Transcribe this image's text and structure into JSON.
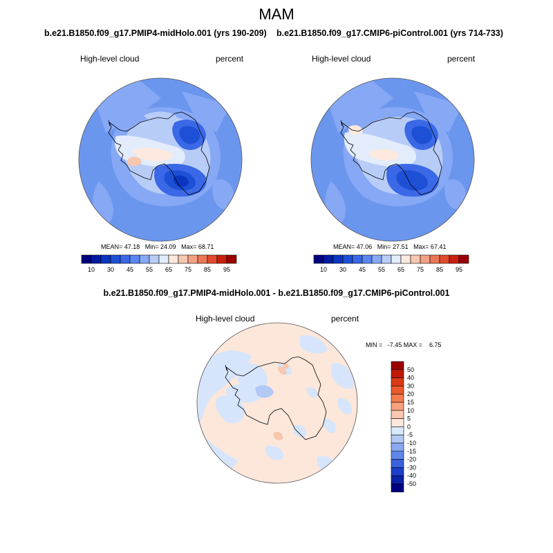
{
  "page": {
    "title": "MAM"
  },
  "panel_left": {
    "case": "b.e21.B1850.f09_g17.PMIP4-midHolo.001 (yrs 190-209)",
    "variable": "High-level cloud",
    "units": "percent",
    "stats": {
      "mean": "MEAN=  47.18",
      "min": "Min=  24.09",
      "max": "Max=  68.71"
    }
  },
  "panel_right": {
    "case": "b.e21.B1850.f09_g17.CMIP6-piControl.001 (yrs 714-733)",
    "variable": "High-level cloud",
    "units": "percent",
    "stats": {
      "mean": "MEAN=  47.06",
      "min": "Min=  27.51",
      "max": "Max=  67.41"
    }
  },
  "panel_diff": {
    "case": "b.e21.B1850.f09_g17.PMIP4-midHolo.001 - b.e21.B1850.f09_g17.CMIP6-piControl.001",
    "variable": "High-level cloud",
    "units": "percent",
    "minmax": "MIN =   -7.45 MAX =    6.75"
  },
  "colorbar_abs": {
    "colors": [
      "#00007f",
      "#001aa0",
      "#0a35c0",
      "#1e50d6",
      "#3a68e6",
      "#5a86ef",
      "#86a8f5",
      "#b8ccf8",
      "#e2ecfb",
      "#fde9dd",
      "#f7c7b0",
      "#f1a084",
      "#eb7656",
      "#e14a2c",
      "#c9200f",
      "#9b0000"
    ],
    "labels": [
      "10",
      "30",
      "45",
      "55",
      "65",
      "75",
      "85",
      "95"
    ]
  },
  "colorbar_diff": {
    "colors_top_to_bottom": [
      "#9b0000",
      "#c01a07",
      "#d93a15",
      "#ec5a2c",
      "#f47d4e",
      "#f7a07e",
      "#fbc7b0",
      "#fde9dd",
      "#d9e8fb",
      "#b2c9f6",
      "#8aa9f1",
      "#5f86ea",
      "#3a62dd",
      "#1d3fca",
      "#0b22a6",
      "#000083"
    ],
    "labels_top_to_bottom": [
      "50",
      "40",
      "30",
      "20",
      "15",
      "10",
      "5",
      "0",
      "-5",
      "-10",
      "-15",
      "-20",
      "-30",
      "-40",
      "-50"
    ]
  },
  "colors": {
    "ocean_high": "#6b96ee",
    "diff_background": "#fce7da",
    "diff_negative": "#d6e5fb"
  }
}
